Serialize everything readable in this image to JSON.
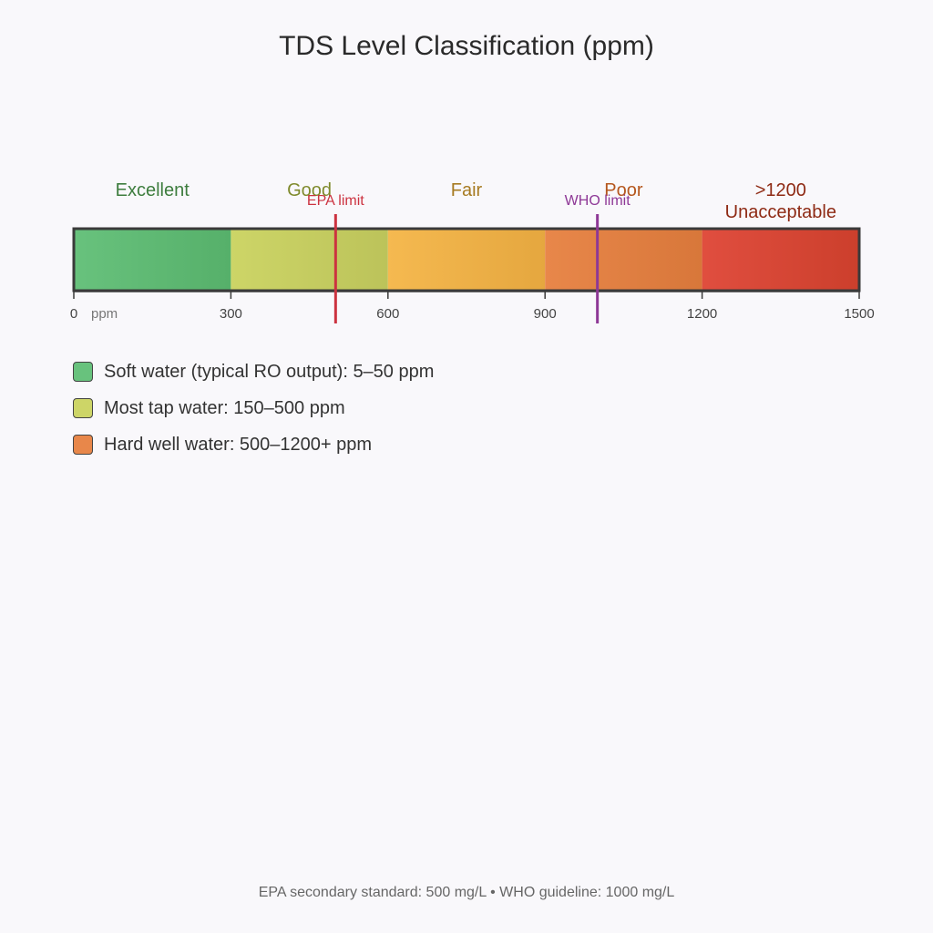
{
  "title": "TDS Level Classification (ppm)",
  "scale": {
    "min": 0,
    "max": 1500,
    "unit_label": "ppm",
    "ticks": [
      0,
      300,
      600,
      900,
      1200,
      1500
    ],
    "bands": [
      {
        "label": [
          "Excellent"
        ],
        "from": 0,
        "to": 300,
        "color_start": "#68c27d",
        "color_end": "#56b06a",
        "label_color": "#3e7d3e"
      },
      {
        "label": [
          "Good"
        ],
        "from": 300,
        "to": 600,
        "color_start": "#cdd567",
        "color_end": "#bcc35a",
        "label_color": "#7f8a2c"
      },
      {
        "label": [
          "Fair"
        ],
        "from": 600,
        "to": 900,
        "color_start": "#f5b950",
        "color_end": "#e5a73f",
        "label_color": "#a77b22"
      },
      {
        "label": [
          "Poor"
        ],
        "from": 900,
        "to": 1200,
        "color_start": "#e8874a",
        "color_end": "#d8773a",
        "label_color": "#b5571e"
      },
      {
        "label": [
          ">1200",
          "Unacceptable"
        ],
        "from": 1200,
        "to": 1500,
        "color_start": "#e04e3f",
        "color_end": "#cc3f2c",
        "label_color": "#8e2a14"
      }
    ],
    "limits": [
      {
        "label": "EPA limit",
        "value": 500,
        "color": "#cc3340"
      },
      {
        "label": "WHO limit",
        "value": 1000,
        "color": "#8e3896"
      }
    ]
  },
  "legend": [
    {
      "label": "Soft water (typical RO output): 5–50 ppm",
      "color": "#68c27d"
    },
    {
      "label": "Most tap water: 150–500 ppm",
      "color": "#cdd567"
    },
    {
      "label": "Hard well water: 500–1200+ ppm",
      "color": "#e8874a"
    }
  ],
  "footnote": "EPA secondary standard: 500 mg/L  •  WHO guideline: 1000 mg/L"
}
